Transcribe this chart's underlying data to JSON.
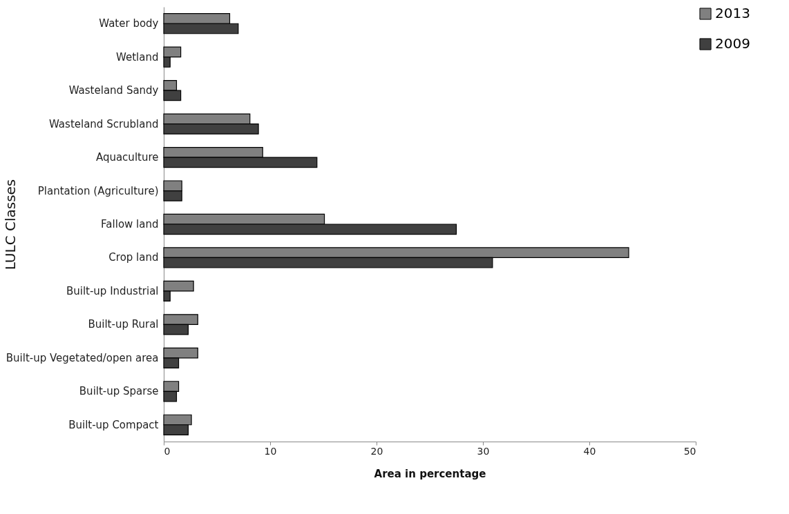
{
  "chart_data": {
    "type": "bar",
    "orientation": "horizontal",
    "xlabel": "Area in percentage",
    "ylabel": "LULC Classes",
    "categories": [
      "Water body",
      "Wetland",
      "Wasteland Sandy",
      "Wasteland Scrubland",
      "Aquaculture",
      "Plantation (Agriculture)",
      "Fallow land",
      "Crop land",
      "Built-up Industrial",
      "Built-up Rural",
      "Built-up Vegetated/open area",
      "Built-up Sparse",
      "Built-up Compact"
    ],
    "series": [
      {
        "name": "2013",
        "color": "#808080",
        "values": [
          6.2,
          1.6,
          1.2,
          8.1,
          9.3,
          1.7,
          15.1,
          43.7,
          2.8,
          3.2,
          3.2,
          1.4,
          2.6
        ]
      },
      {
        "name": "2009",
        "color": "#404040",
        "values": [
          7.0,
          0.6,
          1.6,
          8.9,
          14.4,
          1.7,
          27.5,
          30.9,
          0.6,
          2.3,
          1.4,
          1.2,
          2.3
        ]
      }
    ],
    "xlim": [
      0,
      50
    ],
    "xticks": [
      0,
      10,
      20,
      30,
      40,
      50
    ],
    "grid": false,
    "legend": "right"
  }
}
